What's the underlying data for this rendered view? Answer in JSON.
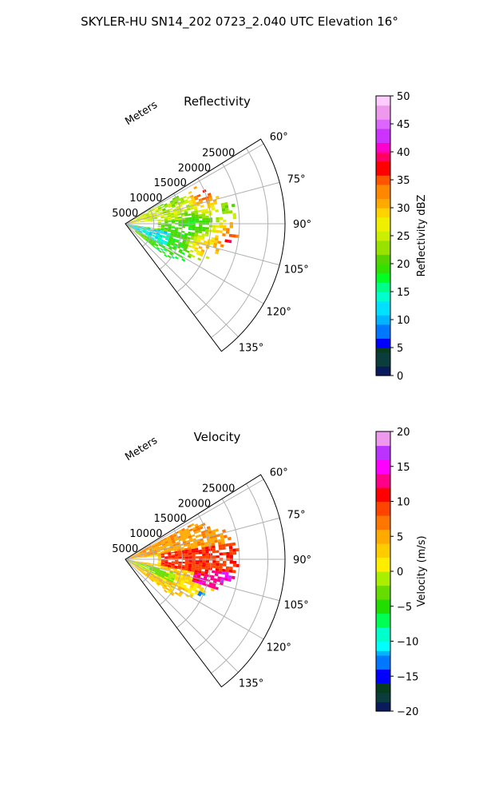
{
  "figure": {
    "title": "SKYLER-HU  SN14_202  0723_2.040 UTC Elevation 16°"
  },
  "chart_data": [
    {
      "type": "heatmap",
      "subtype": "polar-sector (radar PPI)",
      "title": "Reflectivity",
      "radial_label": "Meters",
      "radial_ticks": [
        "5000",
        "10000",
        "15000",
        "20000",
        "25000"
      ],
      "angle_ticks": [
        "60°",
        "75°",
        "90°",
        "105°",
        "120°",
        "135°"
      ],
      "angle_range_deg": [
        58,
        143
      ],
      "radius_range_m": [
        0,
        28000
      ],
      "grid": true,
      "colorbar": {
        "label": "Reflectivity dBZ",
        "range": [
          0,
          50
        ],
        "ticks": [
          "0",
          "5",
          "10",
          "15",
          "20",
          "25",
          "30",
          "35",
          "40",
          "45",
          "50"
        ]
      },
      "echo_cells": [
        {
          "az": 68,
          "r": 14500,
          "value": 38
        },
        {
          "az": 73,
          "r": 10000,
          "value": 28
        },
        {
          "az": 77,
          "r": 9000,
          "value": 27
        },
        {
          "az": 106,
          "r": 14000,
          "value": 33
        },
        {
          "az": 101,
          "r": 16500,
          "value": 33
        },
        {
          "az": 100,
          "r": 18500,
          "value": 40
        }
      ]
    },
    {
      "type": "heatmap",
      "subtype": "polar-sector (radar PPI)",
      "title": "Velocity",
      "radial_label": "Meters",
      "radial_ticks": [
        "5000",
        "10000",
        "15000",
        "20000",
        "25000"
      ],
      "angle_ticks": [
        "60°",
        "75°",
        "90°",
        "105°",
        "120°",
        "135°"
      ],
      "angle_range_deg": [
        58,
        143
      ],
      "radius_range_m": [
        0,
        28000
      ],
      "grid": true,
      "colorbar": {
        "label": "Velocity (m/s)",
        "range": [
          -20,
          20
        ],
        "ticks": [
          "−20",
          "−15",
          "−10",
          "−5",
          "0",
          "5",
          "10",
          "15",
          "20"
        ]
      },
      "echo_cells": [
        {
          "az": 110,
          "r": 6000,
          "value": -3
        },
        {
          "az": 95,
          "r": 22000,
          "value": 15
        },
        {
          "az": 102,
          "r": 15500,
          "value": 13
        },
        {
          "az": 118,
          "r": 15000,
          "value": -12
        }
      ]
    }
  ]
}
